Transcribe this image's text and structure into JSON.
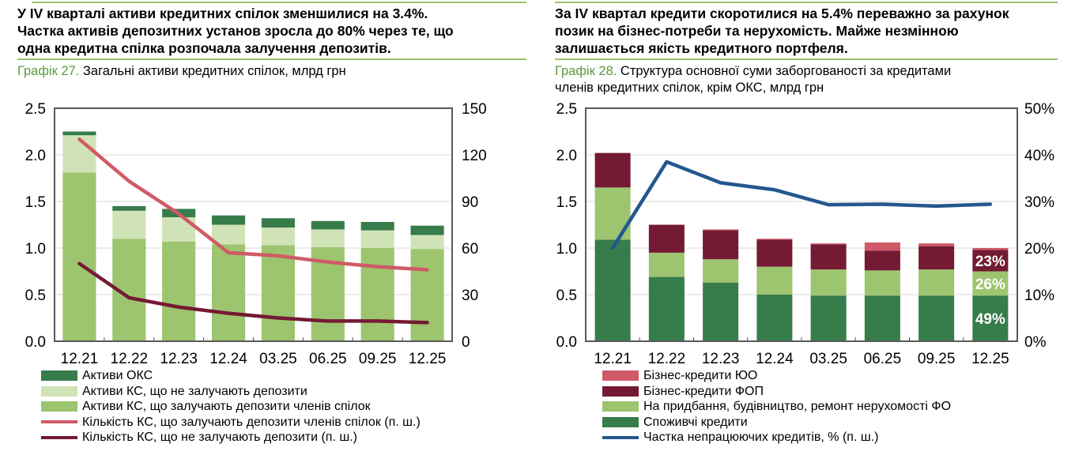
{
  "left": {
    "headline": [
      "У IV кварталі активи кредитних спілок зменшилися на 3.4%.",
      "Частка активів депозитних установ зросла до 80% через те, що",
      "одна кредитна спілка розпочала залучення депозитів."
    ],
    "caption_num": "Графік 27.",
    "caption": " Загальні активи кредитних спілок, млрд грн"
  },
  "right": {
    "headline": [
      "За IV квартал кредити скоротилися на 5.4% переважно за рахунок",
      "позик на бізнес-потреби та нерухомість. Майже незмінною",
      "залишається якість кредитного портфеля."
    ],
    "caption_num": "Графік 28.",
    "caption_l1": " Структура основної суми заборгованості за кредитами",
    "caption_l2": "членів кредитних спілок, крім ОКС, млрд грн"
  },
  "chart_data": [
    {
      "type": "bar",
      "stacked": true,
      "title": "Загальні активи кредитних спілок, млрд грн",
      "categories": [
        "12.21",
        "12.22",
        "12.23",
        "12.24",
        "03.25",
        "06.25",
        "09.25",
        "12.25"
      ],
      "ylim": [
        0,
        2.5
      ],
      "yticks": [
        "0.0",
        "0.5",
        "1.0",
        "1.5",
        "2.0",
        "2.5"
      ],
      "y2lim": [
        0,
        150
      ],
      "y2ticks": [
        "0",
        "30",
        "60",
        "90",
        "120",
        "150"
      ],
      "series": [
        {
          "name": "Активи КС, що залучають депозити членів спілок",
          "color": "#9dc46f",
          "values": [
            1.81,
            1.1,
            1.07,
            1.04,
            1.03,
            1.01,
            1.0,
            0.99
          ]
        },
        {
          "name": "Активи КС, що не залучають депозити",
          "color": "#d0e3b7",
          "values": [
            0.4,
            0.3,
            0.26,
            0.21,
            0.19,
            0.19,
            0.19,
            0.15
          ]
        },
        {
          "name": "Активи ОКС",
          "color": "#377c4b",
          "values": [
            0.04,
            0.05,
            0.09,
            0.1,
            0.1,
            0.09,
            0.09,
            0.1
          ]
        }
      ],
      "lines": [
        {
          "name": "Кількість  КС, що залучають депозити членів спілок (п. ш.)",
          "color": "#d05a67",
          "axis": "right",
          "values": [
            130,
            103,
            82,
            57,
            55,
            51,
            48,
            46
          ]
        },
        {
          "name": "Кількість КС, що не залучають депозити (п. ш.)",
          "color": "#741a33",
          "axis": "right",
          "values": [
            50,
            28,
            22,
            18,
            15,
            13,
            13,
            12
          ]
        }
      ],
      "legend_order": [
        "Активи ОКС",
        "Активи КС, що не залучають депозити",
        "Активи КС, що залучають депозити членів спілок",
        "Кількість  КС, що залучають депозити членів спілок (п. ш.)",
        "Кількість КС, що не залучають депозити (п. ш.)"
      ]
    },
    {
      "type": "bar",
      "stacked": true,
      "title": "Структура основної суми заборгованості за кредитами членів кредитних спілок, крім ОКС, млрд грн",
      "categories": [
        "12.21",
        "12.22",
        "12.23",
        "12.24",
        "03.25",
        "06.25",
        "09.25",
        "12.25"
      ],
      "ylim": [
        0,
        2.5
      ],
      "yticks": [
        "0.0",
        "0.5",
        "1.0",
        "1.5",
        "2.0",
        "2.5"
      ],
      "y2lim": [
        0,
        50
      ],
      "y2ticks": [
        "0%",
        "10%",
        "20%",
        "30%",
        "40%",
        "50%"
      ],
      "series": [
        {
          "name": "Споживчі кредити",
          "color": "#377c4b",
          "values": [
            1.09,
            0.69,
            0.63,
            0.5,
            0.49,
            0.49,
            0.49,
            0.49
          ]
        },
        {
          "name": "На придбання, будівництво, ремонт нерухомості ФО",
          "color": "#9dc46f",
          "values": [
            0.56,
            0.26,
            0.25,
            0.3,
            0.28,
            0.27,
            0.28,
            0.26
          ]
        },
        {
          "name": "Бізнес-кредити ФОП",
          "color": "#741a33",
          "values": [
            0.37,
            0.3,
            0.31,
            0.29,
            0.27,
            0.21,
            0.25,
            0.23
          ]
        },
        {
          "name": "Бізнес-кредити ЮО",
          "color": "#d05a67",
          "values": [
            0,
            0,
            0.01,
            0.01,
            0.01,
            0.09,
            0.03,
            0.02
          ]
        }
      ],
      "lines": [
        {
          "name": "Частка непрацюючих кредитів, % (п. ш.)",
          "color": "#23578f",
          "axis": "right",
          "values": [
            20,
            38.5,
            34,
            32.5,
            29.3,
            29.4,
            29,
            29.4
          ]
        }
      ],
      "data_labels": [
        {
          "series": "Споживчі кредити",
          "category": "12.25",
          "text": "49%"
        },
        {
          "series": "На придбання, будівництво, ремонт нерухомості ФО",
          "category": "12.25",
          "text": "26%"
        },
        {
          "series": "Бізнес-кредити ФОП",
          "category": "12.25",
          "text": "23%"
        }
      ],
      "legend_order": [
        "Бізнес-кредити ЮО",
        "Бізнес-кредити ФОП",
        "На придбання, будівництво, ремонт нерухомості ФО",
        "Споживчі кредити",
        "Частка непрацюючих кредитів, % (п. ш.)"
      ]
    }
  ]
}
